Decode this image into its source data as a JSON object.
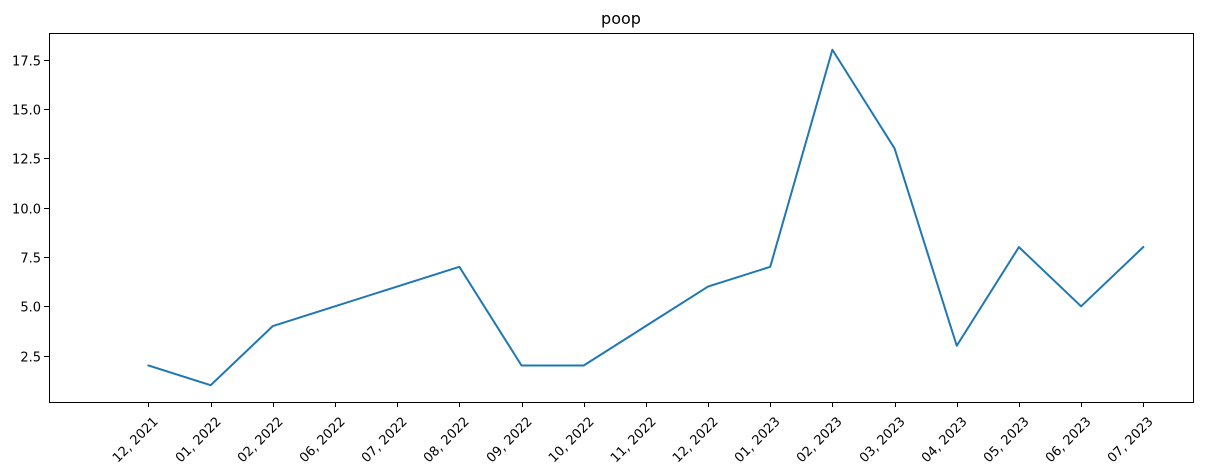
{
  "chart_data": {
    "type": "line",
    "title": "poop",
    "xlabel": "",
    "ylabel": "",
    "categories": [
      "12, 2021",
      "01, 2022",
      "02, 2022",
      "06, 2022",
      "07, 2022",
      "08, 2022",
      "09, 2022",
      "10, 2022",
      "11, 2022",
      "12, 2022",
      "01, 2023",
      "02, 2023",
      "03, 2023",
      "04, 2023",
      "05, 2023",
      "06, 2023",
      "07, 2023"
    ],
    "series": [
      {
        "values": [
          2,
          1,
          4,
          5,
          6,
          7,
          2,
          2,
          4,
          6,
          7,
          18,
          13,
          3,
          8,
          5,
          8
        ],
        "color": "#1f77b4"
      }
    ],
    "yticks": [
      "2.5",
      "5.0",
      "7.5",
      "10.0",
      "12.5",
      "15.0",
      "17.5"
    ],
    "ylim": [
      0.15,
      18.85
    ],
    "grid": false,
    "legend": false
  }
}
